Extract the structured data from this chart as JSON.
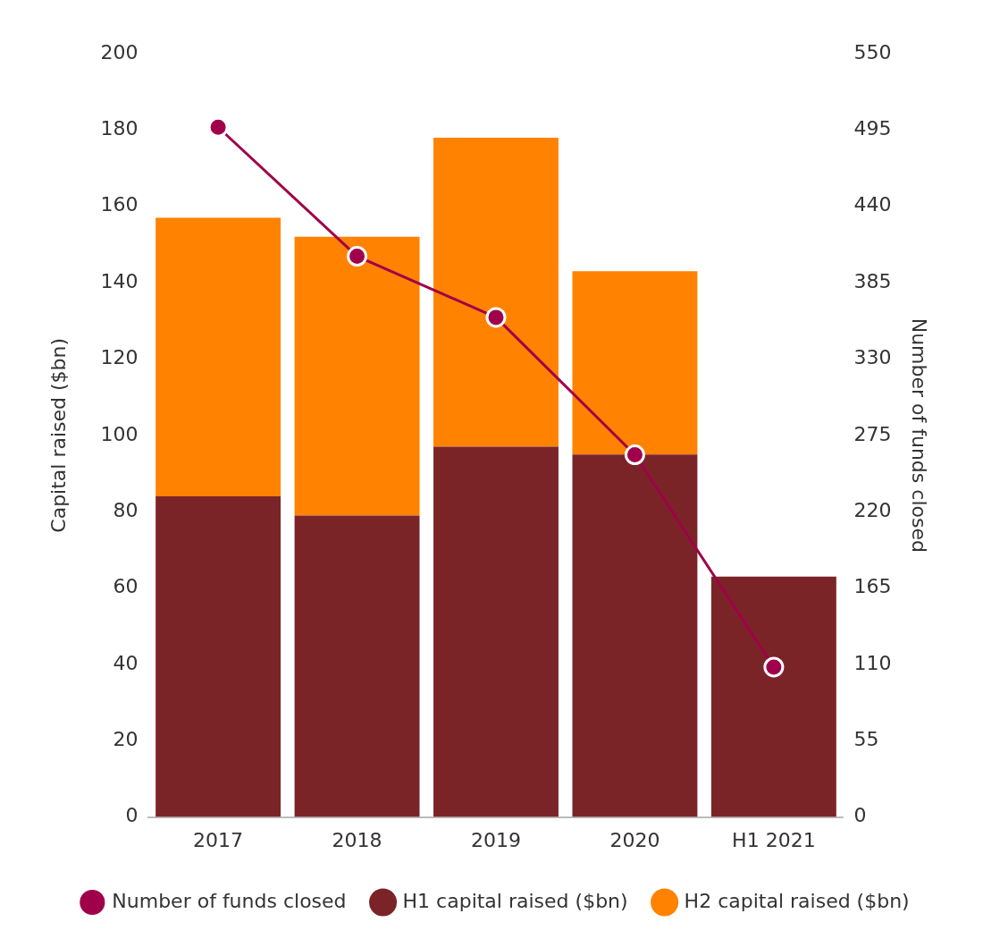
{
  "chart_data": {
    "type": "bar",
    "stacked": true,
    "categories": [
      "2017",
      "2018",
      "2019",
      "2020",
      "H1 2021"
    ],
    "series": [
      {
        "name": "H1 capital raised ($bn)",
        "color": "#7b2428",
        "values": [
          84,
          79,
          97,
          95,
          63
        ]
      },
      {
        "name": "H2 capital raised ($bn)",
        "color": "#ff8200",
        "values": [
          73,
          73,
          81,
          48,
          null
        ]
      },
      {
        "name": "Number of funds closed",
        "type": "line",
        "axis": "y2",
        "color": "#a0004a",
        "values": [
          497,
          404,
          360,
          261,
          108
        ]
      }
    ],
    "ylabel": "Capital raised ($bn)",
    "y2label": "Number of funds closed",
    "ylim": [
      0,
      200
    ],
    "yticks": [
      0,
      20,
      40,
      60,
      80,
      100,
      120,
      140,
      160,
      180,
      200
    ],
    "y2lim": [
      0,
      550
    ],
    "y2ticks": [
      0,
      55,
      110,
      165,
      220,
      275,
      330,
      385,
      440,
      495,
      550
    ],
    "grid": false,
    "legend": "bottom",
    "marker": "circle",
    "line_style": "solid"
  }
}
